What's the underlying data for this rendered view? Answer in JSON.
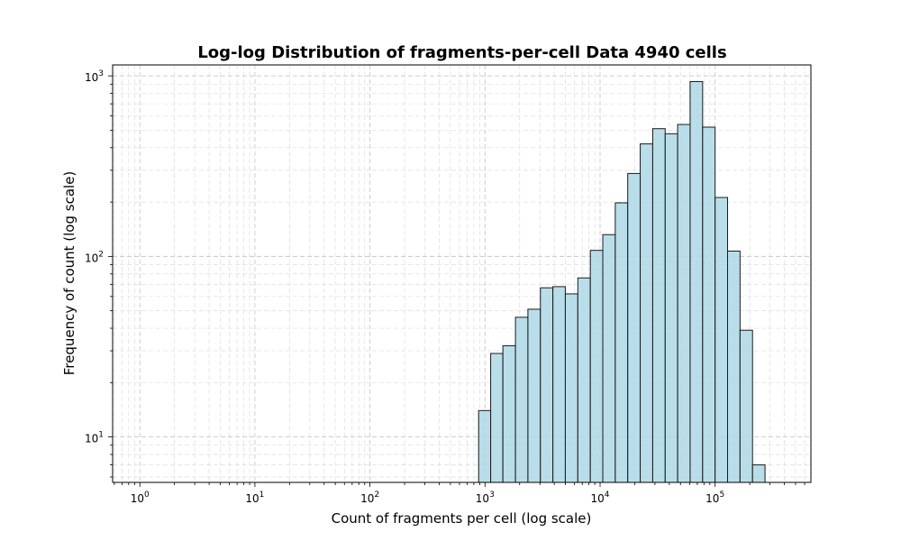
{
  "chart_data": {
    "type": "bar",
    "title": "Log-log Distribution of fragments-per-cell Data 4940 cells",
    "xlabel": "Count of fragments per cell (log scale)",
    "ylabel": "Frequency of count (log scale)",
    "x_scale": "log",
    "y_scale": "log",
    "xlim": [
      0.58,
      680000
    ],
    "ylim": [
      5.6,
      1150
    ],
    "grid": true,
    "bar_color": "#add8e6",
    "bar_edge_color": "#000000",
    "x_ticks": [
      {
        "base": "10",
        "exp": "0",
        "value": 1
      },
      {
        "base": "10",
        "exp": "1",
        "value": 10
      },
      {
        "base": "10",
        "exp": "2",
        "value": 100
      },
      {
        "base": "10",
        "exp": "3",
        "value": 1000
      },
      {
        "base": "10",
        "exp": "4",
        "value": 10000
      },
      {
        "base": "10",
        "exp": "5",
        "value": 100000
      }
    ],
    "y_ticks": [
      {
        "base": "10",
        "exp": "1",
        "value": 10
      },
      {
        "base": "10",
        "exp": "2",
        "value": 100
      },
      {
        "base": "10",
        "exp": "3",
        "value": 1000
      }
    ],
    "bins": [
      {
        "x0": 880,
        "x1": 1120,
        "count": 14
      },
      {
        "x0": 1120,
        "x1": 1430,
        "count": 29
      },
      {
        "x0": 1430,
        "x1": 1840,
        "count": 32
      },
      {
        "x0": 1840,
        "x1": 2360,
        "count": 46
      },
      {
        "x0": 2360,
        "x1": 3030,
        "count": 51
      },
      {
        "x0": 3030,
        "x1": 3890,
        "count": 67
      },
      {
        "x0": 3890,
        "x1": 4990,
        "count": 68
      },
      {
        "x0": 4990,
        "x1": 6410,
        "count": 62
      },
      {
        "x0": 6410,
        "x1": 8230,
        "count": 76
      },
      {
        "x0": 8230,
        "x1": 10560,
        "count": 108
      },
      {
        "x0": 10560,
        "x1": 13560,
        "count": 132
      },
      {
        "x0": 13560,
        "x1": 17400,
        "count": 198
      },
      {
        "x0": 17400,
        "x1": 22340,
        "count": 288
      },
      {
        "x0": 22340,
        "x1": 28680,
        "count": 420
      },
      {
        "x0": 28680,
        "x1": 36810,
        "count": 510
      },
      {
        "x0": 36810,
        "x1": 47250,
        "count": 478
      },
      {
        "x0": 47250,
        "x1": 60660,
        "count": 538
      },
      {
        "x0": 60660,
        "x1": 77870,
        "count": 930
      },
      {
        "x0": 77870,
        "x1": 99960,
        "count": 520
      },
      {
        "x0": 99960,
        "x1": 128300,
        "count": 212
      },
      {
        "x0": 128300,
        "x1": 164700,
        "count": 107
      },
      {
        "x0": 164700,
        "x1": 211400,
        "count": 39
      },
      {
        "x0": 211400,
        "x1": 271400,
        "count": 7
      }
    ]
  }
}
